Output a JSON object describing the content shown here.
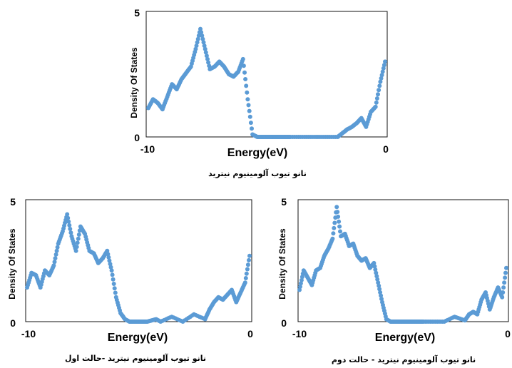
{
  "colors": {
    "series": "#5b9bd5",
    "frame": "#111111"
  },
  "chart_data": [
    {
      "type": "scatter",
      "xlabel": "Energy(eV)",
      "ylabel": "Density Of States",
      "xlim": [
        -10,
        0
      ],
      "ylim": [
        0,
        5
      ],
      "xticks": [
        "-10",
        "0"
      ],
      "yticks": [
        "0",
        "5"
      ],
      "caption": "نانو تیوب آلومینیوم نیترید",
      "grid": false,
      "x": [
        -10,
        -9.8,
        -9.6,
        -9.4,
        -9.2,
        -9.0,
        -8.8,
        -8.6,
        -8.4,
        -8.2,
        -8.0,
        -7.8,
        -7.6,
        -7.4,
        -7.2,
        -7.0,
        -6.8,
        -6.6,
        -6.4,
        -6.2,
        -6.0,
        -5.8,
        -5.6,
        -5.4,
        -5.2,
        -5.0,
        -4.8,
        -4.6,
        -4.4,
        -4.2,
        -4.0,
        -3.5,
        -3.0,
        -2.5,
        -2.0,
        -1.8,
        -1.6,
        -1.4,
        -1.2,
        -1.0,
        -0.8,
        -0.6,
        -0.4,
        -0.2,
        0
      ],
      "y": [
        1.15,
        1.5,
        1.35,
        1.1,
        1.6,
        2.1,
        1.9,
        2.3,
        2.55,
        2.8,
        3.5,
        4.3,
        3.5,
        2.7,
        2.8,
        3.0,
        2.8,
        2.5,
        2.4,
        2.6,
        3.1,
        1.5,
        0.1,
        0.0,
        0.0,
        0.0,
        0.0,
        0.0,
        0.0,
        0.0,
        0.0,
        0.0,
        0.0,
        0.0,
        0.0,
        0.15,
        0.3,
        0.4,
        0.55,
        0.75,
        0.4,
        1.0,
        1.2,
        2.2,
        3.0
      ]
    },
    {
      "type": "scatter",
      "xlabel": "Energy(eV)",
      "ylabel": "Density Of States",
      "xlim": [
        -10,
        0
      ],
      "ylim": [
        0,
        5
      ],
      "xticks": [
        "-10",
        "0"
      ],
      "yticks": [
        "0",
        "5"
      ],
      "caption": "نانو تیوب آلومینیوم نیترید -حالت اول",
      "grid": false,
      "x": [
        -10,
        -9.8,
        -9.6,
        -9.4,
        -9.2,
        -9.0,
        -8.8,
        -8.6,
        -8.4,
        -8.2,
        -8.0,
        -7.8,
        -7.6,
        -7.4,
        -7.2,
        -7.0,
        -6.8,
        -6.6,
        -6.4,
        -6.2,
        -6.0,
        -5.8,
        -5.6,
        -5.4,
        -5.2,
        -5.0,
        -4.8,
        -4.6,
        -4.4,
        -4.2,
        -4.0,
        -3.5,
        -3.0,
        -2.5,
        -2.0,
        -1.8,
        -1.6,
        -1.4,
        -1.2,
        -1.0,
        -0.8,
        -0.6,
        -0.4,
        -0.2,
        0
      ],
      "y": [
        1.4,
        2.0,
        1.9,
        1.4,
        2.1,
        1.9,
        2.3,
        3.2,
        3.7,
        4.4,
        3.5,
        2.9,
        3.9,
        3.6,
        2.9,
        2.8,
        2.4,
        2.6,
        2.9,
        2.1,
        1.0,
        0.35,
        0.1,
        0.0,
        0.0,
        0.0,
        0.0,
        0.0,
        0.05,
        0.1,
        0.0,
        0.2,
        0.0,
        0.3,
        0.1,
        0.5,
        0.8,
        1.0,
        0.9,
        1.1,
        1.3,
        0.8,
        1.2,
        1.6,
        2.7
      ]
    },
    {
      "type": "scatter",
      "xlabel": "Energy(eV)",
      "ylabel": "Density Of States",
      "xlim": [
        -10,
        0
      ],
      "ylim": [
        0,
        5
      ],
      "xticks": [
        "-10",
        "0"
      ],
      "yticks": [
        "0",
        "5"
      ],
      "caption": "نانو تیوب آلومینیوم نیترید - حالت دوم",
      "grid": false,
      "x": [
        -10,
        -9.8,
        -9.6,
        -9.4,
        -9.2,
        -9.0,
        -8.8,
        -8.6,
        -8.4,
        -8.2,
        -8.0,
        -7.8,
        -7.6,
        -7.4,
        -7.2,
        -7.0,
        -6.8,
        -6.6,
        -6.4,
        -6.2,
        -6.0,
        -5.8,
        -5.6,
        -5.4,
        -5.2,
        -5.0,
        -4.8,
        -4.6,
        -4.4,
        -4.2,
        -4.0,
        -3.5,
        -3.0,
        -2.5,
        -2.0,
        -1.8,
        -1.6,
        -1.4,
        -1.2,
        -1.0,
        -0.8,
        -0.6,
        -0.4,
        -0.2,
        0
      ],
      "y": [
        1.3,
        2.1,
        1.8,
        1.5,
        2.1,
        2.2,
        2.7,
        3.0,
        3.4,
        4.7,
        3.5,
        3.6,
        3.1,
        3.2,
        2.7,
        2.5,
        2.6,
        2.2,
        2.4,
        1.6,
        0.8,
        0.1,
        0.0,
        0.0,
        0.0,
        0.0,
        0.0,
        0.0,
        0.0,
        0.0,
        0.0,
        0.0,
        0.0,
        0.2,
        0.05,
        0.3,
        0.4,
        0.3,
        0.9,
        1.2,
        0.5,
        1.0,
        1.4,
        1.0,
        2.2
      ]
    }
  ]
}
